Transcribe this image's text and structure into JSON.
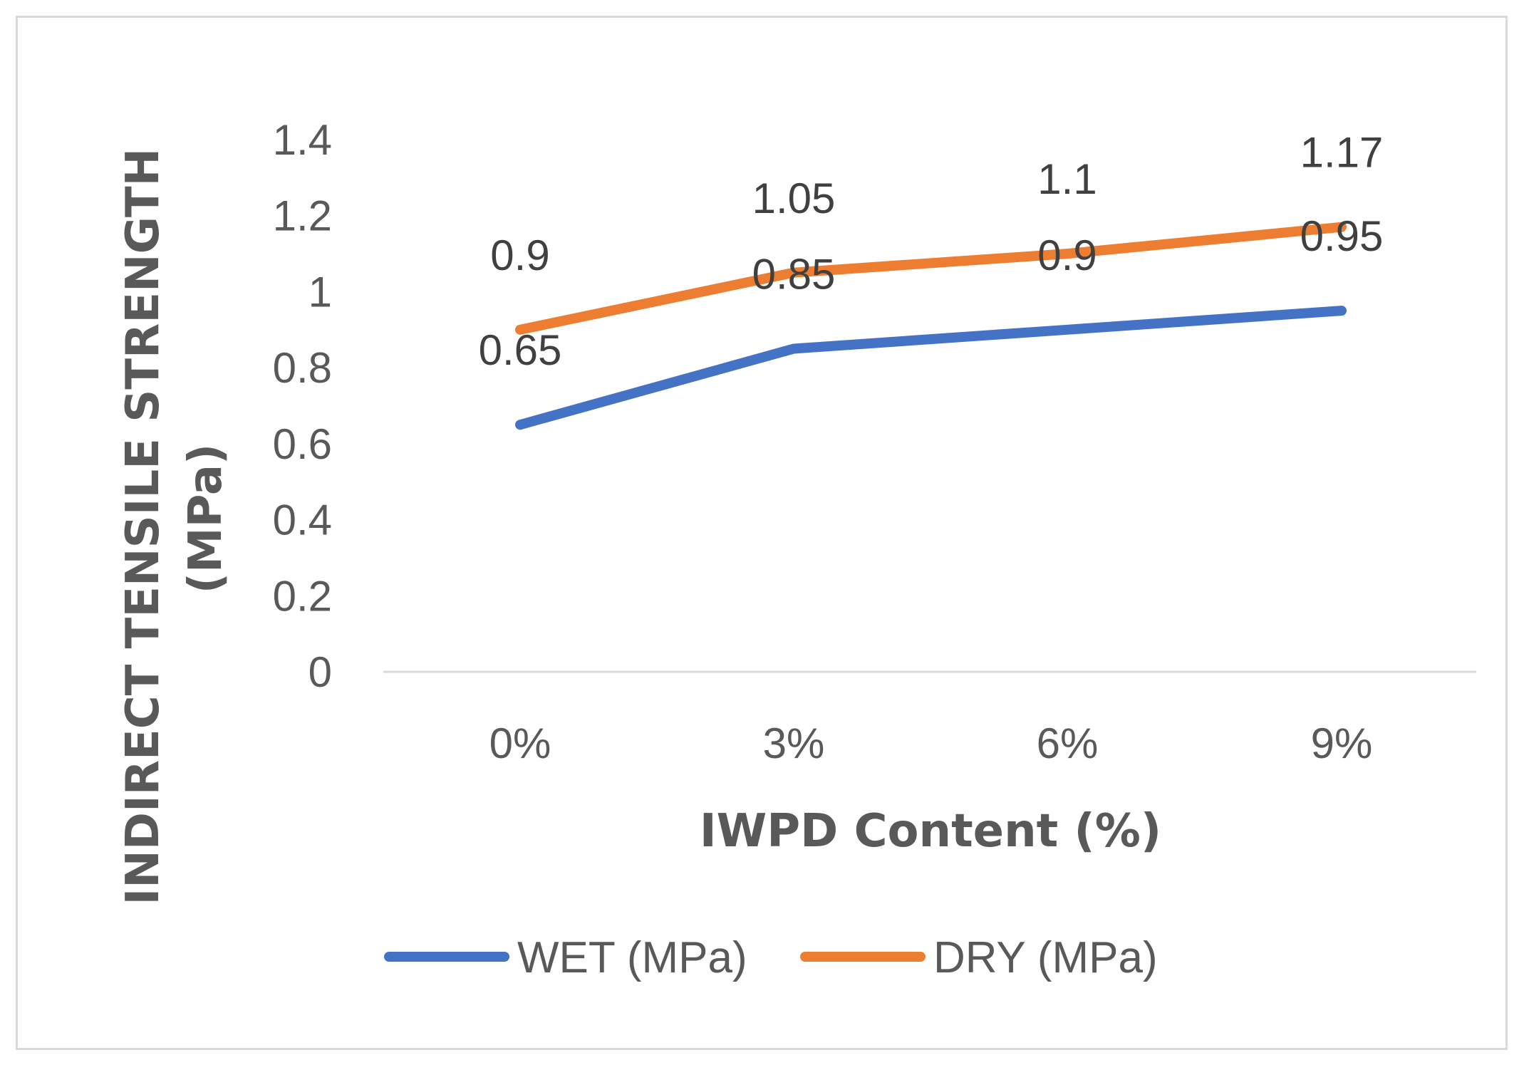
{
  "chart_data": {
    "type": "line",
    "categories": [
      "0%",
      "3%",
      "6%",
      "9%"
    ],
    "series": [
      {
        "name": "WET (MPa)",
        "color": "#4472c4",
        "values": [
          0.65,
          0.85,
          0.9,
          0.95
        ],
        "labels": [
          "0.65",
          "0.85",
          "0.9",
          "0.95"
        ]
      },
      {
        "name": "DRY (MPa)",
        "color": "#ed7d31",
        "values": [
          0.9,
          1.05,
          1.1,
          1.17
        ],
        "labels": [
          "0.9",
          "1.05",
          "1.1",
          "1.17"
        ]
      }
    ],
    "xlabel": "IWPD Content (%)",
    "ylabel_lines": [
      "INDIRECT TENSILE STRENGTH",
      "(MPa)"
    ],
    "ylim": [
      0,
      1.4
    ],
    "yticks": [
      "0",
      "0.2",
      "0.4",
      "0.6",
      "0.8",
      "1",
      "1.2",
      "1.4"
    ],
    "grid": false,
    "legend_position": "bottom"
  }
}
